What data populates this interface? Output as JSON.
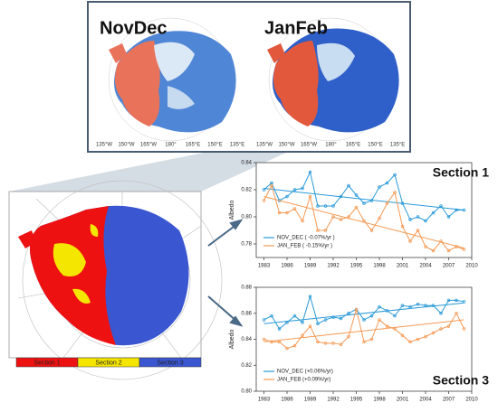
{
  "maps": {
    "panels": [
      {
        "title": "NovDec",
        "lon_labels": [
          "135°W",
          "150°W",
          "165°W",
          "180°",
          "165°E",
          "150°E",
          "135°E"
        ]
      },
      {
        "title": "JanFeb",
        "lon_labels": [
          "135°W",
          "150°W",
          "165°W",
          "180°",
          "165°E",
          "150°E",
          "135°E"
        ]
      }
    ],
    "sections": [
      {
        "name": "Section 1",
        "color": "#ee1111"
      },
      {
        "name": "Section 2",
        "color": "#f5e600"
      },
      {
        "name": "Section 3",
        "color": "#3a56d0"
      }
    ]
  },
  "chart_data": [
    {
      "type": "line",
      "annotation": "Section 1",
      "y_label": "Albedo",
      "legend": "lower left",
      "x": [
        1983,
        1984,
        1985,
        1986,
        1987,
        1988,
        1989,
        1990,
        1991,
        1992,
        1993,
        1994,
        1995,
        1996,
        1997,
        1998,
        1999,
        2000,
        2001,
        2002,
        2003,
        2004,
        2005,
        2006,
        2007,
        2008,
        2009
      ],
      "xlim": [
        1982,
        2010
      ],
      "xticks": [
        1983,
        1986,
        1989,
        1992,
        1995,
        1998,
        2001,
        2004,
        2007,
        2010
      ],
      "ylim": [
        0.77,
        0.84
      ],
      "yticks": [
        0.78,
        {
          "value": 0.8,
          "label": "0.80"
        },
        0.82,
        0.84
      ],
      "series": [
        {
          "name": "NOV_DEC ( -0.07%/yr )",
          "color": "#2a9ad8",
          "trend": [
            0.821,
            0.805
          ],
          "values": [
            0.82,
            0.825,
            0.812,
            0.815,
            0.82,
            0.821,
            0.833,
            0.808,
            0.808,
            0.808,
            0.815,
            0.823,
            0.816,
            0.81,
            0.812,
            0.822,
            0.825,
            0.831,
            0.81,
            0.798,
            0.8,
            0.797,
            0.803,
            0.808,
            0.8,
            0.805,
            0.805
          ]
        },
        {
          "name": "JAN_FEB ( -0.15%/yr )",
          "color": "#f59a55",
          "trend": [
            0.815,
            0.777
          ],
          "values": [
            0.812,
            0.823,
            0.803,
            0.803,
            0.806,
            0.797,
            0.815,
            0.79,
            0.79,
            0.8,
            0.798,
            0.8,
            0.807,
            0.797,
            0.79,
            0.799,
            0.81,
            0.818,
            0.793,
            0.782,
            0.79,
            0.778,
            0.775,
            0.782,
            0.775,
            0.778,
            0.776
          ]
        }
      ]
    },
    {
      "type": "line",
      "annotation": "Section 3",
      "y_label": "Albedo",
      "legend": "lower left",
      "x": [
        1983,
        1984,
        1985,
        1986,
        1987,
        1988,
        1989,
        1990,
        1991,
        1992,
        1993,
        1994,
        1995,
        1996,
        1997,
        1998,
        1999,
        2000,
        2001,
        2002,
        2003,
        2004,
        2005,
        2006,
        2007,
        2008,
        2009
      ],
      "xlim": [
        1982,
        2010
      ],
      "xticks": [
        1983,
        1986,
        1989,
        1992,
        1995,
        1998,
        2001,
        2004,
        2007,
        2010
      ],
      "ylim": [
        0.8,
        0.88
      ],
      "yticks": [
        {
          "value": 0.8,
          "label": "0.80"
        },
        0.82,
        0.84,
        0.86,
        0.88
      ],
      "series": [
        {
          "name": "NOV_DEC (+0.06%/yr)",
          "color": "#2a9ad8",
          "trend": [
            0.852,
            0.868
          ],
          "values": [
            0.855,
            0.858,
            0.848,
            0.853,
            0.858,
            0.853,
            0.873,
            0.852,
            0.855,
            0.857,
            0.856,
            0.86,
            0.863,
            0.855,
            0.858,
            0.865,
            0.862,
            0.858,
            0.866,
            0.865,
            0.867,
            0.866,
            0.866,
            0.86,
            0.87,
            0.87,
            0.869
          ]
        },
        {
          "name": "JAN_FEB (+0.09%/yr)",
          "color": "#f59a55",
          "trend": [
            0.838,
            0.855
          ],
          "values": [
            0.84,
            0.838,
            0.838,
            0.833,
            0.835,
            0.843,
            0.85,
            0.838,
            0.837,
            0.837,
            0.836,
            0.842,
            0.863,
            0.838,
            0.84,
            0.855,
            0.85,
            0.848,
            0.843,
            0.838,
            0.84,
            0.842,
            0.845,
            0.848,
            0.85,
            0.86,
            0.848
          ]
        }
      ]
    }
  ]
}
